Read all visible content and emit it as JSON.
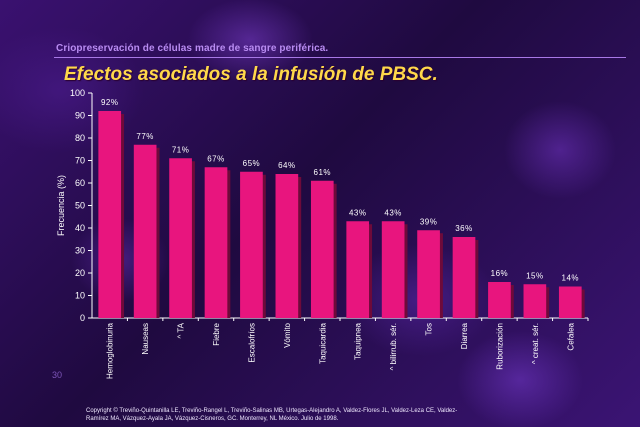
{
  "slide": {
    "subtitle": "Criopreservación de células madre de sangre periférica.",
    "title": "Efectos asociados a la infusión de PBSC.",
    "page_number": "30",
    "copyright_line1": "Copyright © Treviño-Quintanilla LE, Treviño-Rangel L, Treviño-Salinas MB, Urtegas-Alejandro A, Valdez-Flores JL, Valdez-Leza CE, Valdez-",
    "copyright_line2": "Ramírez MA, Vázquez-Ayala JA, Vázquez-Cisneros, GC.  Monterrey, NL México. Julio de 1998."
  },
  "chart_data": {
    "type": "bar",
    "ylabel": "Frecuencia (%)",
    "xlabel": "",
    "ylim": [
      0,
      100
    ],
    "yticks": [
      "0",
      "10",
      "20",
      "30",
      "40",
      "50",
      "60",
      "70",
      "80",
      "90",
      "100"
    ],
    "categories": [
      "Hemoglobinuria",
      "Nauseas",
      "^ TA",
      "Fiebre",
      "Escalofríos",
      "Vómito",
      "Taquicardia",
      "Taquipnea",
      "^ bilirrub. sér.",
      "Tos",
      "Diarrea",
      "Ruborización",
      "^ creat. sér.",
      "Cefalea"
    ],
    "values": [
      92,
      77,
      71,
      67,
      65,
      64,
      61,
      43,
      43,
      39,
      36,
      16,
      15,
      14
    ],
    "data_labels": [
      "92%",
      "77%",
      "71%",
      "67%",
      "65%",
      "64%",
      "61%",
      "43%",
      "43%",
      "39%",
      "36%",
      "16%",
      "15%",
      "14%"
    ],
    "grid": false,
    "legend": "none",
    "colors": {
      "bar": "#e8157e",
      "bar_shadow": "#6e0a3a",
      "axis": "#ffffff",
      "text": "#ffffff"
    }
  }
}
